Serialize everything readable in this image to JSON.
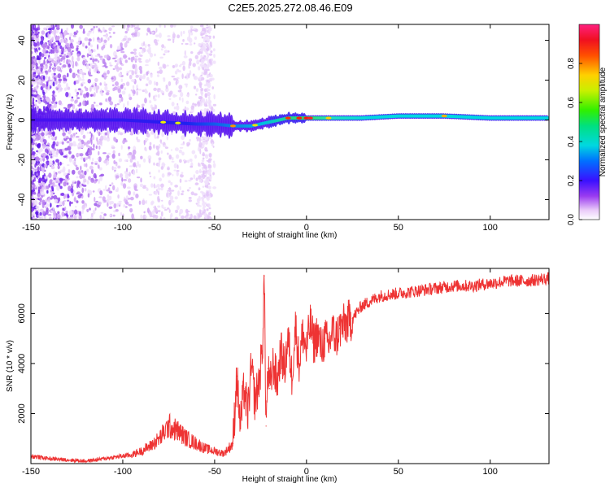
{
  "figure": {
    "title": "C2E5.2025.272.08.46.E09"
  },
  "chart_data": [
    {
      "type": "heatmap",
      "title": "C2E5.2025.272.08.46.E09",
      "xlabel": "Height of straight line (km)",
      "ylabel": "Frequency (Hz)",
      "xlim": [
        -150,
        132
      ],
      "ylim": [
        -50,
        48
      ],
      "xticks": [
        -150,
        -100,
        -50,
        0,
        50,
        100
      ],
      "yticks": [
        -40,
        -20,
        0,
        20,
        40
      ],
      "colorbar": {
        "label": "Normalized spectral amplitude",
        "range": [
          0,
          1
        ],
        "ticks": [
          "0.0",
          "0.2",
          "0.4",
          "0.6",
          "0.8"
        ],
        "colormap": "rainbow (white-violet-blue-cyan-green-yellow-red-magenta)"
      },
      "ridge": {
        "description": "Dominant spectral ridge near 0 Hz",
        "x": [
          -150,
          -120,
          -100,
          -80,
          -60,
          -50,
          -40,
          -30,
          -20,
          -10,
          0,
          10,
          20,
          30,
          50,
          75,
          100,
          132
        ],
        "frequency": [
          0,
          0,
          0,
          -1,
          -2,
          -2,
          -3,
          -3,
          -1,
          1,
          1,
          1,
          1,
          1,
          2,
          2,
          1,
          1
        ],
        "amplitude": [
          0.2,
          0.2,
          0.25,
          0.4,
          0.45,
          0.5,
          0.6,
          0.55,
          0.6,
          0.85,
          0.95,
          0.7,
          0.55,
          0.5,
          0.5,
          0.55,
          0.5,
          0.5
        ]
      }
    },
    {
      "type": "line",
      "xlabel": "Height of straight line (km)",
      "ylabel": "SNR (10 * v/v)",
      "xlim": [
        -150,
        132
      ],
      "ylim": [
        0,
        7800
      ],
      "xticks": [
        -150,
        -100,
        -50,
        0,
        50,
        100
      ],
      "yticks": [
        2000,
        4000,
        6000
      ],
      "color": "#ee3333",
      "x": [
        -150,
        -140,
        -130,
        -120,
        -110,
        -100,
        -95,
        -90,
        -85,
        -80,
        -75,
        -70,
        -65,
        -60,
        -55,
        -50,
        -45,
        -40,
        -38,
        -36,
        -34,
        -32,
        -30,
        -28,
        -26,
        -24,
        -23,
        -22,
        -21,
        -20,
        -18,
        -16,
        -14,
        -12,
        -10,
        -8,
        -6,
        -4,
        -2,
        0,
        2,
        4,
        6,
        8,
        10,
        12,
        14,
        16,
        18,
        20,
        25,
        30,
        35,
        40,
        50,
        60,
        70,
        80,
        90,
        100,
        110,
        120,
        132
      ],
      "y": [
        300,
        200,
        150,
        100,
        200,
        300,
        350,
        500,
        700,
        1000,
        1500,
        1300,
        1000,
        800,
        600,
        500,
        400,
        800,
        3500,
        1500,
        3000,
        2000,
        3800,
        2500,
        3200,
        4500,
        7500,
        1500,
        3800,
        3000,
        4000,
        3200,
        4500,
        3800,
        5000,
        3500,
        5500,
        4000,
        5200,
        4500,
        5600,
        4800,
        5200,
        4600,
        5000,
        4700,
        5300,
        5000,
        5400,
        5500,
        5800,
        6300,
        6500,
        6700,
        6800,
        6900,
        7000,
        7100,
        7100,
        7200,
        7300,
        7300,
        7400
      ]
    }
  ]
}
